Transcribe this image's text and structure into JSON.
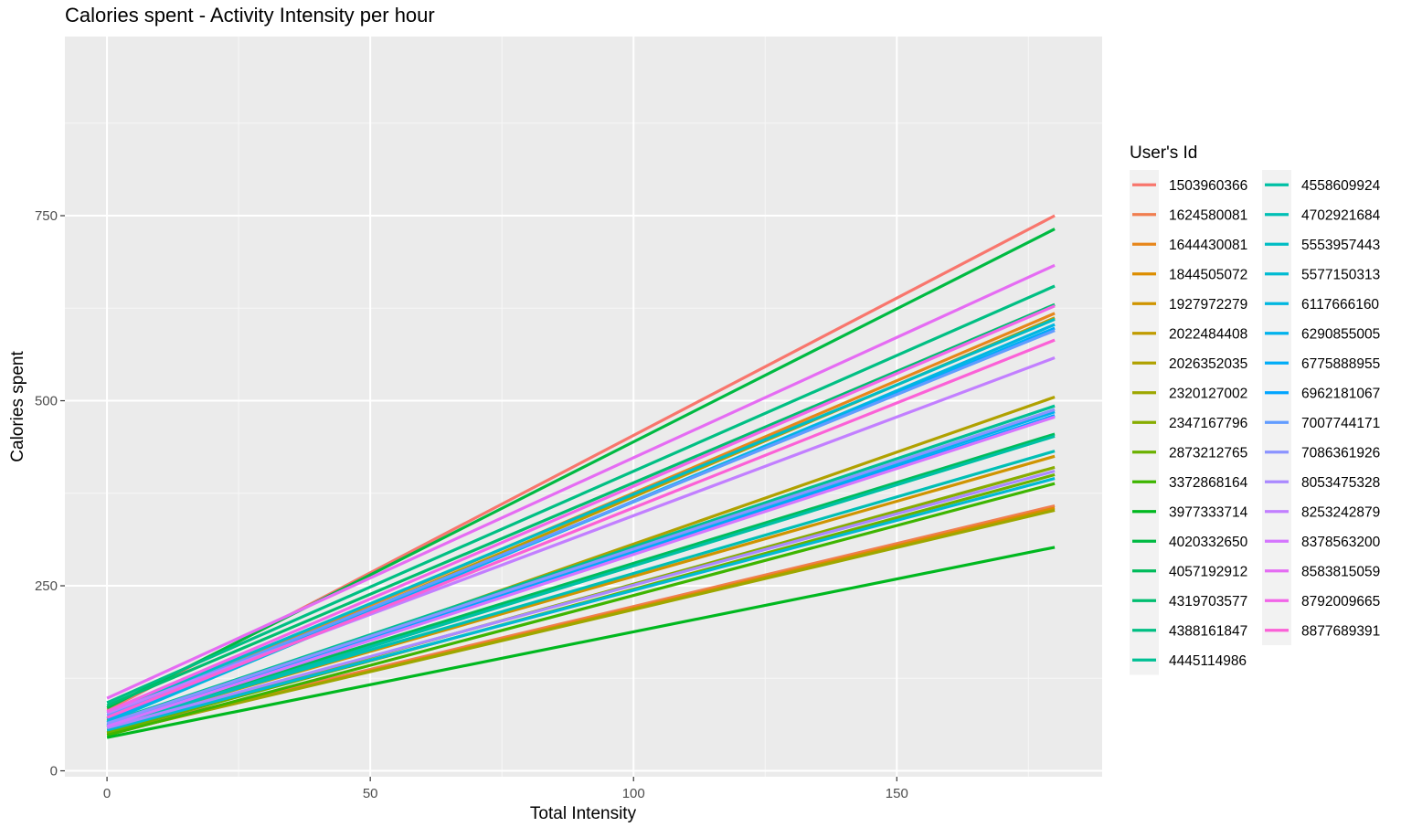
{
  "chart_data": {
    "type": "line",
    "title": "Calories spent - Activity Intensity per hour",
    "xlabel": "Total Intensity",
    "ylabel": "Calories spent",
    "xlim": [
      -8,
      189
    ],
    "ylim": [
      -8,
      992
    ],
    "x_ticks": [
      0,
      50,
      100,
      150
    ],
    "y_ticks": [
      0,
      250,
      500,
      750
    ],
    "grid": true,
    "legend": {
      "title": "User's Id",
      "position": "right",
      "columns": 2
    },
    "series": [
      {
        "name": "1503960366",
        "color": "#F8766D",
        "x": [
          0,
          180
        ],
        "y": [
          82,
          750
        ]
      },
      {
        "name": "1624580081",
        "color": "#F07E4F",
        "x": [
          0,
          180
        ],
        "y": [
          52,
          358
        ]
      },
      {
        "name": "1644430081",
        "color": "#E7861B",
        "x": [
          0,
          180
        ],
        "y": [
          72,
          618
        ]
      },
      {
        "name": "1844505072",
        "color": "#DC8D00",
        "x": [
          0,
          180
        ],
        "y": [
          50,
          355
        ]
      },
      {
        "name": "1927972279",
        "color": "#CF9400",
        "x": [
          0,
          180
        ],
        "y": [
          60,
          425
        ]
      },
      {
        "name": "2022484408",
        "color": "#C09B00",
        "x": [
          0,
          180
        ],
        "y": [
          68,
          612
        ]
      },
      {
        "name": "2026352035",
        "color": "#B0A100",
        "x": [
          0,
          180
        ],
        "y": [
          58,
          505
        ]
      },
      {
        "name": "2320127002",
        "color": "#9DA700",
        "x": [
          0,
          180
        ],
        "y": [
          50,
          352
        ]
      },
      {
        "name": "2347167796",
        "color": "#87AC00",
        "x": [
          0,
          180
        ],
        "y": [
          55,
          410
        ]
      },
      {
        "name": "2873212765",
        "color": "#6BB100",
        "x": [
          0,
          180
        ],
        "y": [
          52,
          400
        ]
      },
      {
        "name": "3372868164",
        "color": "#3DB500",
        "x": [
          0,
          180
        ],
        "y": [
          48,
          388
        ]
      },
      {
        "name": "3977333714",
        "color": "#00B81F",
        "x": [
          0,
          180
        ],
        "y": [
          45,
          302
        ]
      },
      {
        "name": "4020332650",
        "color": "#00BA42",
        "x": [
          0,
          180
        ],
        "y": [
          85,
          732
        ]
      },
      {
        "name": "4057192912",
        "color": "#00BC5B",
        "x": [
          0,
          180
        ],
        "y": [
          62,
          455
        ]
      },
      {
        "name": "4319703577",
        "color": "#00BE70",
        "x": [
          0,
          180
        ],
        "y": [
          88,
          630
        ]
      },
      {
        "name": "4388161847",
        "color": "#00BF83",
        "x": [
          0,
          180
        ],
        "y": [
          92,
          655
        ]
      },
      {
        "name": "4445114986",
        "color": "#00C094",
        "x": [
          0,
          180
        ],
        "y": [
          65,
          493
        ]
      },
      {
        "name": "4558609924",
        "color": "#00C0A5",
        "x": [
          0,
          180
        ],
        "y": [
          58,
          452
        ]
      },
      {
        "name": "4702921684",
        "color": "#00BFB5",
        "x": [
          0,
          180
        ],
        "y": [
          60,
          432
        ]
      },
      {
        "name": "5553957443",
        "color": "#00BDC4",
        "x": [
          0,
          180
        ],
        "y": [
          78,
          610
        ]
      },
      {
        "name": "5577150313",
        "color": "#00BBD2",
        "x": [
          0,
          180
        ],
        "y": [
          55,
          395
        ]
      },
      {
        "name": "6117666160",
        "color": "#00B7E0",
        "x": [
          0,
          180
        ],
        "y": [
          66,
          603
        ]
      },
      {
        "name": "6290855005",
        "color": "#00B2EC",
        "x": [
          0,
          180
        ],
        "y": [
          60,
          485
        ]
      },
      {
        "name": "6775888955",
        "color": "#00ACF7",
        "x": [
          0,
          180
        ],
        "y": [
          70,
          598
        ]
      },
      {
        "name": "6962181067",
        "color": "#00A5FF",
        "x": [
          0,
          180
        ],
        "y": [
          62,
          480
        ]
      },
      {
        "name": "7007744171",
        "color": "#619CFF",
        "x": [
          0,
          180
        ],
        "y": [
          75,
          595
        ]
      },
      {
        "name": "7086361926",
        "color": "#8B93FF",
        "x": [
          0,
          180
        ],
        "y": [
          64,
          488
        ]
      },
      {
        "name": "8053475328",
        "color": "#AA89FF",
        "x": [
          0,
          180
        ],
        "y": [
          58,
          405
        ]
      },
      {
        "name": "8253242879",
        "color": "#C27FFF",
        "x": [
          0,
          180
        ],
        "y": [
          78,
          558
        ]
      },
      {
        "name": "8378563200",
        "color": "#D575FE",
        "x": [
          0,
          180
        ],
        "y": [
          60,
          478
        ]
      },
      {
        "name": "8583815059",
        "color": "#E56CF3",
        "x": [
          0,
          180
        ],
        "y": [
          98,
          683
        ]
      },
      {
        "name": "8792009665",
        "color": "#F265E8",
        "x": [
          0,
          180
        ],
        "y": [
          80,
          628
        ]
      },
      {
        "name": "8877689391",
        "color": "#FB61D7",
        "x": [
          0,
          180
        ],
        "y": [
          72,
          582
        ]
      }
    ]
  }
}
